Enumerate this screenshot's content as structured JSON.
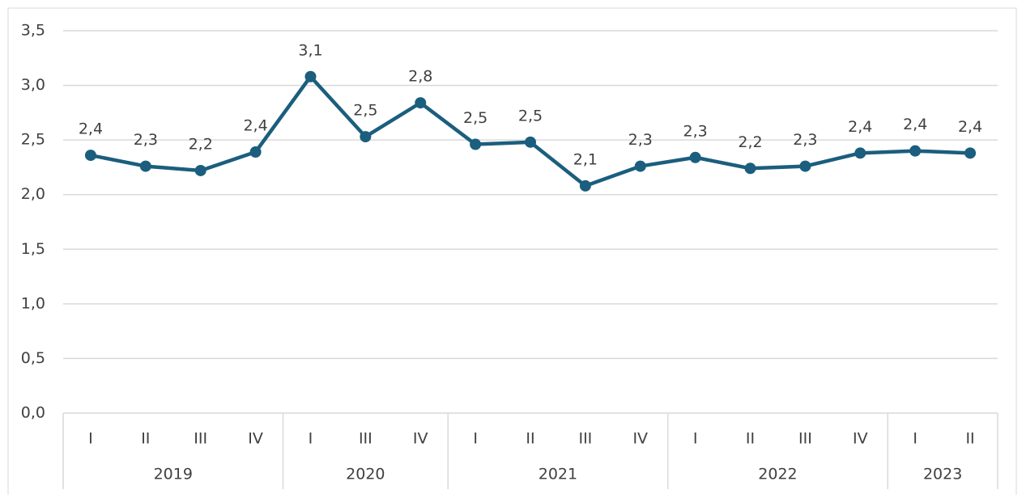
{
  "chart_data": {
    "type": "line",
    "category_groups": [
      {
        "name": "2019",
        "categories": [
          "I",
          "II",
          "III",
          "IV"
        ]
      },
      {
        "name": "2020",
        "categories": [
          "I",
          "III",
          "IV"
        ]
      },
      {
        "name": "2021",
        "categories": [
          "I",
          "II",
          "III",
          "IV"
        ]
      },
      {
        "name": "2022",
        "categories": [
          "I",
          "II",
          "III",
          "IV"
        ]
      },
      {
        "name": "2023",
        "categories": [
          "I",
          "II"
        ]
      }
    ],
    "series": [
      {
        "color": "#1b5e7e",
        "values": [
          2.36,
          2.26,
          2.22,
          2.39,
          3.08,
          2.53,
          2.84,
          2.46,
          2.48,
          2.08,
          2.26,
          2.34,
          2.24,
          2.26,
          2.38,
          2.4,
          2.38
        ],
        "value_labels": [
          "2,4",
          "2,3",
          "2,2",
          "2,4",
          "3,1",
          "2,5",
          "2,8",
          "2,5",
          "2,5",
          "2,1",
          "2,3",
          "2,3",
          "2,2",
          "2,3",
          "2,4",
          "2,4",
          "2,4"
        ]
      }
    ],
    "ylim": [
      0,
      3.5
    ],
    "yticks": [
      {
        "value": 0,
        "label": "0,0"
      },
      {
        "value": 0.5,
        "label": "0,5"
      },
      {
        "value": 1,
        "label": "1,0"
      },
      {
        "value": 1.5,
        "label": "1,5"
      },
      {
        "value": 2,
        "label": "2,0"
      },
      {
        "value": 2.5,
        "label": "2,5"
      },
      {
        "value": 3,
        "label": "3,0"
      },
      {
        "value": 3.5,
        "label": "3,5"
      }
    ],
    "grid": true
  }
}
